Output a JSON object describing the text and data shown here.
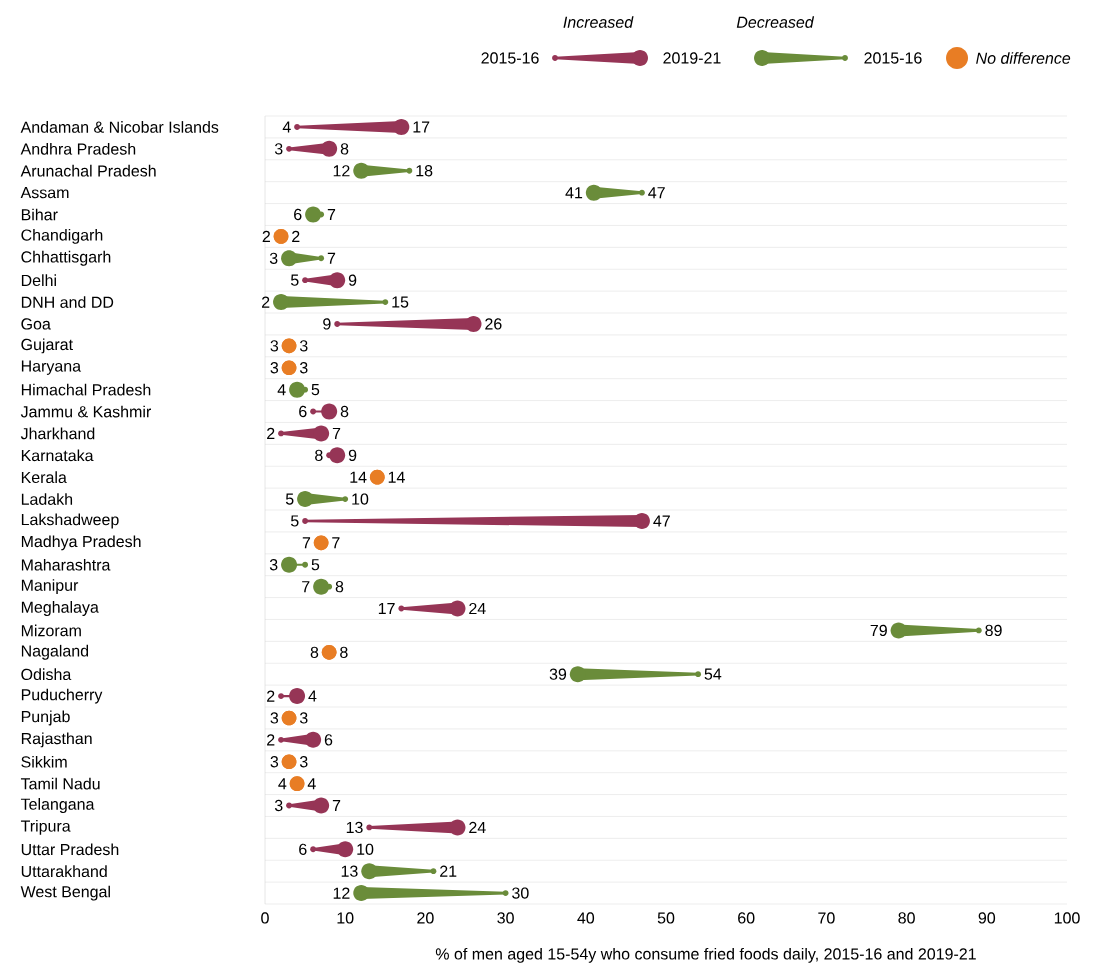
{
  "chart_data": {
    "type": "scatter",
    "orientation": "horizontal",
    "xlabel": "% of men aged 15-54y who consume fried foods daily, 2015-16 and 2019-21",
    "categories": [
      "Andaman & Nicobar Islands",
      "Andhra Pradesh",
      "Arunachal Pradesh",
      "Assam",
      "Bihar",
      "Chandigarh",
      "Chhattisgarh",
      "Delhi",
      "DNH and DD",
      "Goa",
      "Gujarat",
      "Haryana",
      "Himachal Pradesh",
      "Jammu & Kashmir",
      "Jharkhand",
      "Karnataka",
      "Kerala",
      "Ladakh",
      "Lakshadweep",
      "Madhya Pradesh",
      "Maharashtra",
      "Manipur",
      "Meghalaya",
      "Mizoram",
      "Nagaland",
      "Odisha",
      "Puducherry",
      "Punjab",
      "Rajasthan",
      "Sikkim",
      "Tamil Nadu",
      "Telangana",
      "Tripura",
      "Uttar Pradesh",
      "Uttarakhand",
      "West Bengal"
    ],
    "series": [
      {
        "name": "2015-16",
        "values": [
          4,
          3,
          18,
          47,
          7,
          2,
          7,
          5,
          15,
          9,
          3,
          3,
          5,
          6,
          2,
          8,
          14,
          10,
          5,
          7,
          5,
          8,
          17,
          89,
          8,
          54,
          2,
          3,
          2,
          3,
          4,
          3,
          13,
          6,
          21,
          30
        ],
        "colors": [
          "#963556",
          "#963556",
          "#6a8c3a",
          "#6a8c3a",
          "#6a8c3a",
          "#e87d24",
          "#6a8c3a",
          "#963556",
          "#6a8c3a",
          "#963556",
          "#e87d24",
          "#e87d24",
          "#6a8c3a",
          "#963556",
          "#963556",
          "#963556",
          "#e87d24",
          "#6a8c3a",
          "#963556",
          "#e87d24",
          "#6a8c3a",
          "#6a8c3a",
          "#963556",
          "#6a8c3a",
          "#e87d24",
          "#6a8c3a",
          "#963556",
          "#e87d24",
          "#963556",
          "#e87d24",
          "#e87d24",
          "#963556",
          "#963556",
          "#963556",
          "#6a8c3a",
          "#6a8c3a"
        ]
      },
      {
        "name": "2019-21",
        "values": [
          17,
          8,
          12,
          41,
          6,
          2,
          3,
          9,
          2,
          26,
          3,
          3,
          4,
          8,
          7,
          9,
          14,
          5,
          47,
          7,
          3,
          7,
          24,
          79,
          8,
          39,
          4,
          3,
          6,
          3,
          4,
          7,
          24,
          10,
          13,
          12
        ],
        "colors": [
          "#963556",
          "#963556",
          "#6a8c3a",
          "#6a8c3a",
          "#6a8c3a",
          "#e87d24",
          "#6a8c3a",
          "#963556",
          "#6a8c3a",
          "#963556",
          "#e87d24",
          "#e87d24",
          "#6a8c3a",
          "#963556",
          "#963556",
          "#963556",
          "#e87d24",
          "#6a8c3a",
          "#963556",
          "#e87d24",
          "#6a8c3a",
          "#6a8c3a",
          "#963556",
          "#6a8c3a",
          "#e87d24",
          "#6a8c3a",
          "#963556",
          "#e87d24",
          "#963556",
          "#e87d24",
          "#e87d24",
          "#963556",
          "#963556",
          "#963556",
          "#6a8c3a",
          "#6a8c3a"
        ]
      }
    ],
    "xlim": [
      0,
      100
    ],
    "xticks": [
      0,
      10,
      20,
      30,
      40,
      50,
      60,
      70,
      80,
      90,
      100
    ],
    "data_labels": true,
    "legend": "top",
    "annotations": [
      "Increased",
      "Decreased",
      "No difference"
    ]
  }
}
